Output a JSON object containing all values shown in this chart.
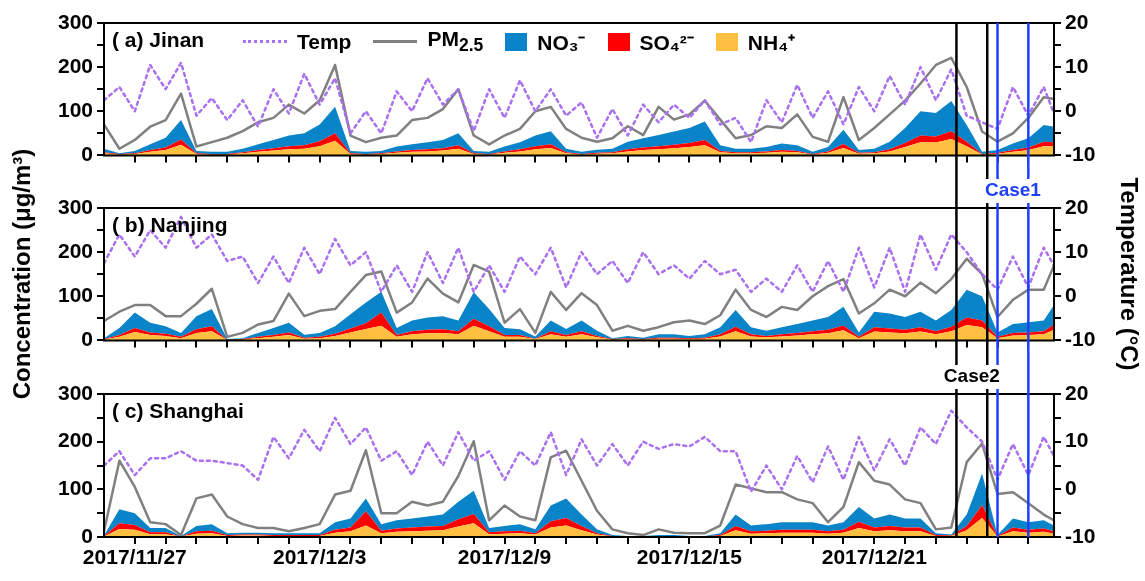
{
  "chart_data": [
    {
      "type": "area",
      "title": "( a) Jinan",
      "stacked": true,
      "legend": "top",
      "tick_labels": "y",
      "xticks": [
        {
          "value": "2017-11-27",
          "label": null
        },
        {
          "value": "2017-11-28",
          "label": null
        },
        {
          "value": "2017-11-29",
          "label": null
        },
        {
          "value": "2017-11-30",
          "label": null
        },
        {
          "value": "2017-12-01",
          "label": null
        },
        {
          "value": "2017-12-02",
          "label": null
        },
        {
          "value": "2017-12-03",
          "label": null
        },
        {
          "value": "2017-12-04",
          "label": null
        },
        {
          "value": "2017-12-05",
          "label": null
        },
        {
          "value": "2017-12-06",
          "label": null
        },
        {
          "value": "2017-12-07",
          "label": null
        },
        {
          "value": "2017-12-08",
          "label": null
        },
        {
          "value": "2017-12-09",
          "label": null
        },
        {
          "value": "2017-12-10",
          "label": null
        },
        {
          "value": "2017-12-11",
          "label": null
        },
        {
          "value": "2017-12-12",
          "label": null
        },
        {
          "value": "2017-12-13",
          "label": null
        },
        {
          "value": "2017-12-14",
          "label": null
        },
        {
          "value": "2017-12-15",
          "label": null
        },
        {
          "value": "2017-12-16",
          "label": null
        },
        {
          "value": "2017-12-17",
          "label": null
        },
        {
          "value": "2017-12-18",
          "label": null
        },
        {
          "value": "2017-12-19",
          "label": null
        },
        {
          "value": "2017-12-20",
          "label": null
        },
        {
          "value": "2017-12-21",
          "label": null
        },
        {
          "value": "2017-12-22",
          "label": null
        },
        {
          "value": "2017-12-23",
          "label": null
        },
        {
          "value": "2017-12-24",
          "label": null
        },
        {
          "value": "2017-12-25",
          "label": null
        },
        {
          "value": "2017-12-26",
          "label": null
        }
      ],
      "x": [
        "2017-11-26T00:00",
        "2017-11-26T12:00",
        "2017-11-27T00:00",
        "2017-11-27T12:00",
        "2017-11-28T00:00",
        "2017-11-28T12:00",
        "2017-11-29T00:00",
        "2017-11-29T12:00",
        "2017-11-30T00:00",
        "2017-11-30T12:00",
        "2017-12-01T00:00",
        "2017-12-01T12:00",
        "2017-12-02T00:00",
        "2017-12-02T12:00",
        "2017-12-03T00:00",
        "2017-12-03T12:00",
        "2017-12-04T00:00",
        "2017-12-04T12:00",
        "2017-12-05T00:00",
        "2017-12-05T12:00",
        "2017-12-06T00:00",
        "2017-12-06T12:00",
        "2017-12-07T00:00",
        "2017-12-07T12:00",
        "2017-12-08T00:00",
        "2017-12-08T12:00",
        "2017-12-09T00:00",
        "2017-12-09T12:00",
        "2017-12-10T00:00",
        "2017-12-10T12:00",
        "2017-12-11T00:00",
        "2017-12-11T12:00",
        "2017-12-12T00:00",
        "2017-12-12T12:00",
        "2017-12-13T00:00",
        "2017-12-13T12:00",
        "2017-12-14T00:00",
        "2017-12-14T12:00",
        "2017-12-15T00:00",
        "2017-12-15T12:00",
        "2017-12-16T00:00",
        "2017-12-16T12:00",
        "2017-12-17T00:00",
        "2017-12-17T12:00",
        "2017-12-18T00:00",
        "2017-12-18T12:00",
        "2017-12-19T00:00",
        "2017-12-19T12:00",
        "2017-12-20T00:00",
        "2017-12-20T12:00",
        "2017-12-21T00:00",
        "2017-12-21T12:00",
        "2017-12-22T00:00",
        "2017-12-22T12:00",
        "2017-12-23T00:00",
        "2017-12-23T12:00",
        "2017-12-24T00:00",
        "2017-12-24T12:00",
        "2017-12-25T00:00",
        "2017-12-25T12:00",
        "2017-12-26T00:00",
        "2017-12-26T12:00",
        "2017-12-26T20:00"
      ],
      "xlim": [
        "2017-11-26T00:00",
        "2017-12-26T20:00"
      ],
      "ylim": [
        0,
        300
      ],
      "yticks": [
        0,
        {
          "value": 50,
          "label": null
        },
        100,
        {
          "value": 150,
          "label": null
        },
        200,
        {
          "value": 250,
          "label": null
        },
        300
      ],
      "y2lim": [
        -10,
        20
      ],
      "y2ticks": [
        -10,
        {
          "value": -5,
          "label": null
        },
        0,
        {
          "value": 5,
          "label": null
        },
        10,
        {
          "value": 15,
          "label": null
        },
        20
      ],
      "ref_lines": [
        {
          "axis": "x",
          "value": "2017-12-23T16:00",
          "color": "#000000"
        },
        {
          "axis": "x",
          "value": "2017-12-24T16:00",
          "color": "#000000"
        },
        {
          "axis": "x",
          "value": "2017-12-25T00:00",
          "color": "#1f3fff"
        },
        {
          "axis": "x",
          "value": "2017-12-26T00:00",
          "color": "#1f3fff"
        }
      ],
      "series": [
        {
          "name": "Temp",
          "type": "line",
          "axis": "y2",
          "line_style": "dotted",
          "color": "#a970f0",
          "values": [
            2.5,
            5.5,
            0,
            10.5,
            5,
            11,
            -1,
            3,
            -2,
            2.5,
            -3.5,
            5,
            -0.5,
            8.5,
            1.5,
            7.5,
            -5,
            0,
            -5,
            4.5,
            0,
            7.5,
            1.5,
            5,
            -4.5,
            5,
            -1.5,
            7,
            0,
            5,
            -1,
            2,
            -6,
            0.5,
            -5.5,
            1.5,
            -2.5,
            1.5,
            -1.5,
            2.5,
            -3,
            -1.5,
            -7,
            2.5,
            -2.5,
            6,
            -1.5,
            4.5,
            -3,
            5.5,
            0,
            8,
            1.5,
            10,
            2.5,
            9.5,
            -1,
            -2.5,
            -4,
            5.5,
            -1,
            5.5,
            -0.5
          ]
        },
        {
          "name": "PM$_{2.5}$",
          "type": "line",
          "color": "#808080",
          "values": [
            70,
            15,
            35,
            65,
            80,
            140,
            20,
            30,
            40,
            55,
            75,
            85,
            115,
            95,
            125,
            205,
            45,
            30,
            40,
            45,
            80,
            85,
            105,
            150,
            45,
            25,
            45,
            60,
            100,
            110,
            60,
            40,
            31,
            39,
            66,
            46,
            110,
            81,
            93,
            124,
            81,
            39,
            46,
            66,
            62,
            93,
            42,
            31,
            132,
            35,
            62,
            93,
            124,
            163,
            205,
            221,
            155,
            54,
            31,
            50,
            85,
            132,
            128
          ]
        },
        {
          "name": "NH₄⁺",
          "color": "#ffbf40",
          "values": [
            5,
            2,
            3,
            8,
            12,
            24,
            3,
            2,
            2,
            5,
            8,
            11,
            14,
            15,
            21,
            33,
            3,
            2,
            3,
            6,
            8,
            9,
            11,
            15,
            3,
            2,
            6,
            9,
            14,
            17,
            5,
            2,
            4,
            5,
            9,
            12,
            14,
            16,
            19,
            23,
            7,
            5,
            5,
            6,
            8,
            7,
            2,
            6,
            17,
            4,
            5,
            9,
            19,
            30,
            29,
            37,
            21,
            2,
            4,
            8,
            12,
            21,
            20
          ]
        },
        {
          "name": "SO₄²⁻",
          "color": "#ff0000",
          "values": [
            2,
            1,
            2,
            4,
            6,
            12,
            2,
            1,
            1,
            2,
            4,
            5,
            7,
            8,
            11,
            17,
            2,
            1,
            2,
            3,
            4,
            5,
            5,
            8,
            2,
            1,
            3,
            5,
            7,
            8,
            2,
            1,
            2,
            2,
            5,
            6,
            7,
            8,
            9,
            12,
            3,
            2,
            2,
            3,
            4,
            3,
            1,
            3,
            9,
            2,
            2,
            5,
            9,
            15,
            14,
            18,
            10,
            1,
            2,
            4,
            6,
            10,
            10
          ]
        },
        {
          "name": "NO₃⁻",
          "color": "#0a84c8",
          "values": [
            8,
            2,
            5,
            13,
            22,
            44,
            5,
            5,
            5,
            8,
            13,
            19,
            24,
            27,
            38,
            60,
            5,
            5,
            5,
            11,
            13,
            16,
            19,
            27,
            5,
            5,
            11,
            16,
            24,
            30,
            8,
            5,
            7,
            8,
            17,
            21,
            25,
            30,
            34,
            42,
            13,
            8,
            8,
            10,
            15,
            13,
            5,
            10,
            32,
            6,
            8,
            17,
            34,
            55,
            53,
            68,
            38,
            5,
            6,
            15,
            21,
            38,
            35
          ]
        }
      ]
    },
    {
      "type": "area",
      "title": "( b) Nanjing",
      "stacked": true,
      "tick_labels": "y",
      "ylabel": "Concentration (μg/m³)",
      "y2label": "Temperature (°C)",
      "x": [
        "2017-11-26T00:00",
        "2017-11-26T12:00",
        "2017-11-27T00:00",
        "2017-11-27T12:00",
        "2017-11-28T00:00",
        "2017-11-28T12:00",
        "2017-11-29T00:00",
        "2017-11-29T12:00",
        "2017-11-30T00:00",
        "2017-11-30T12:00",
        "2017-12-01T00:00",
        "2017-12-01T12:00",
        "2017-12-02T00:00",
        "2017-12-02T12:00",
        "2017-12-03T00:00",
        "2017-12-03T12:00",
        "2017-12-04T00:00",
        "2017-12-04T12:00",
        "2017-12-05T00:00",
        "2017-12-05T12:00",
        "2017-12-06T00:00",
        "2017-12-06T12:00",
        "2017-12-07T00:00",
        "2017-12-07T12:00",
        "2017-12-08T00:00",
        "2017-12-08T12:00",
        "2017-12-09T00:00",
        "2017-12-09T12:00",
        "2017-12-10T00:00",
        "2017-12-10T12:00",
        "2017-12-11T00:00",
        "2017-12-11T12:00",
        "2017-12-12T00:00",
        "2017-12-12T12:00",
        "2017-12-13T00:00",
        "2017-12-13T12:00",
        "2017-12-14T00:00",
        "2017-12-14T12:00",
        "2017-12-15T00:00",
        "2017-12-15T12:00",
        "2017-12-16T00:00",
        "2017-12-16T12:00",
        "2017-12-17T00:00",
        "2017-12-17T12:00",
        "2017-12-18T00:00",
        "2017-12-18T12:00",
        "2017-12-19T00:00",
        "2017-12-19T12:00",
        "2017-12-20T00:00",
        "2017-12-20T12:00",
        "2017-12-21T00:00",
        "2017-12-21T12:00",
        "2017-12-22T00:00",
        "2017-12-22T12:00",
        "2017-12-23T00:00",
        "2017-12-23T12:00",
        "2017-12-24T00:00",
        "2017-12-24T12:00",
        "2017-12-25T00:00",
        "2017-12-25T12:00",
        "2017-12-26T00:00",
        "2017-12-26T12:00",
        "2017-12-26T20:00"
      ],
      "xlim": [
        "2017-11-26T00:00",
        "2017-12-26T20:00"
      ],
      "xticks": [
        {
          "value": "2017-11-27",
          "label": null
        },
        {
          "value": "2017-11-28",
          "label": null
        },
        {
          "value": "2017-11-29",
          "label": null
        },
        {
          "value": "2017-11-30",
          "label": null
        },
        {
          "value": "2017-12-01",
          "label": null
        },
        {
          "value": "2017-12-02",
          "label": null
        },
        {
          "value": "2017-12-03",
          "label": null
        },
        {
          "value": "2017-12-04",
          "label": null
        },
        {
          "value": "2017-12-05",
          "label": null
        },
        {
          "value": "2017-12-06",
          "label": null
        },
        {
          "value": "2017-12-07",
          "label": null
        },
        {
          "value": "2017-12-08",
          "label": null
        },
        {
          "value": "2017-12-09",
          "label": null
        },
        {
          "value": "2017-12-10",
          "label": null
        },
        {
          "value": "2017-12-11",
          "label": null
        },
        {
          "value": "2017-12-12",
          "label": null
        },
        {
          "value": "2017-12-13",
          "label": null
        },
        {
          "value": "2017-12-14",
          "label": null
        },
        {
          "value": "2017-12-15",
          "label": null
        },
        {
          "value": "2017-12-16",
          "label": null
        },
        {
          "value": "2017-12-17",
          "label": null
        },
        {
          "value": "2017-12-18",
          "label": null
        },
        {
          "value": "2017-12-19",
          "label": null
        },
        {
          "value": "2017-12-20",
          "label": null
        },
        {
          "value": "2017-12-21",
          "label": null
        },
        {
          "value": "2017-12-22",
          "label": null
        },
        {
          "value": "2017-12-23",
          "label": null
        },
        {
          "value": "2017-12-24",
          "label": null
        },
        {
          "value": "2017-12-25",
          "label": null
        },
        {
          "value": "2017-12-26",
          "label": null
        }
      ],
      "ylim": [
        0,
        300
      ],
      "yticks": [
        0,
        {
          "value": 50,
          "label": null
        },
        100,
        {
          "value": 150,
          "label": null
        },
        200,
        {
          "value": 250,
          "label": null
        },
        300
      ],
      "y2lim": [
        -10,
        20
      ],
      "y2ticks": [
        -10,
        {
          "value": -5,
          "label": null
        },
        0,
        {
          "value": 5,
          "label": null
        },
        10,
        {
          "value": 15,
          "label": null
        },
        20
      ],
      "ref_lines": [
        {
          "axis": "x",
          "value": "2017-12-23T16:00",
          "color": "#000000"
        },
        {
          "axis": "x",
          "value": "2017-12-24T16:00",
          "color": "#000000"
        },
        {
          "axis": "x",
          "value": "2017-12-25T00:00",
          "label": "Case1",
          "color": "#1f3fff"
        },
        {
          "axis": "x",
          "value": "2017-12-26T00:00",
          "color": "#1f3fff"
        }
      ],
      "series": [
        {
          "type": "line",
          "axis": "y2",
          "line_style": "dotted",
          "color": "#a970f0",
          "values": [
            7.5,
            14,
            9,
            15,
            11,
            18,
            11,
            14,
            8,
            9,
            3,
            9,
            3,
            11,
            5,
            13,
            7,
            10,
            1,
            7,
            1,
            10,
            3,
            11,
            1,
            7,
            1,
            9,
            5,
            11,
            2,
            10,
            5,
            8,
            3,
            10,
            5,
            7,
            4,
            8,
            5,
            6,
            1,
            4,
            1,
            7,
            1,
            8,
            1,
            11,
            2,
            11,
            1,
            14,
            6,
            14,
            10,
            5,
            1.5,
            9,
            2,
            11,
            7
          ]
        },
        {
          "type": "line",
          "color": "#808080",
          "values": [
            44,
            65,
            80,
            80,
            55,
            55,
            83,
            117,
            8,
            17,
            36,
            44,
            106,
            55,
            67,
            71,
            110,
            148,
            156,
            63,
            86,
            140,
            106,
            86,
            171,
            156,
            40,
            71,
            17,
            110,
            69,
            107,
            80,
            22,
            33,
            22,
            30,
            41,
            45,
            37,
            57,
            115,
            69,
            53,
            76,
            69,
            100,
            123,
            139,
            61,
            84,
            115,
            100,
            131,
            107,
            139,
            185,
            150,
            53,
            92,
            115,
            115,
            170
          ]
        },
        {
          "color": "#ffbf40",
          "values": [
            2,
            8,
            19,
            12,
            10,
            5,
            17,
            21,
            1,
            2,
            5,
            8,
            12,
            4,
            5,
            10,
            18,
            26,
            33,
            8,
            14,
            16,
            17,
            14,
            33,
            21,
            8,
            8,
            3,
            14,
            8,
            14,
            7,
            2,
            3,
            2,
            4,
            4,
            3,
            4,
            9,
            21,
            9,
            7,
            9,
            11,
            14,
            16,
            23,
            5,
            20,
            18,
            16,
            20,
            14,
            21,
            35,
            30,
            5,
            11,
            12,
            14,
            24
          ]
        },
        {
          "color": "#ff0000",
          "values": [
            1,
            4,
            9,
            6,
            5,
            3,
            8,
            11,
            0,
            1,
            3,
            4,
            6,
            2,
            3,
            5,
            9,
            13,
            30,
            4,
            7,
            8,
            8,
            7,
            16,
            11,
            4,
            4,
            1,
            7,
            4,
            7,
            3,
            1,
            2,
            1,
            2,
            2,
            2,
            2,
            5,
            10,
            5,
            3,
            5,
            6,
            7,
            8,
            11,
            3,
            10,
            9,
            8,
            10,
            7,
            10,
            17,
            15,
            3,
            6,
            6,
            7,
            12
          ]
        },
        {
          "color": "#0a84c8",
          "values": [
            2,
            16,
            35,
            22,
            17,
            9,
            30,
            39,
            2,
            2,
            9,
            16,
            22,
            7,
            9,
            17,
            32,
            47,
            47,
            16,
            24,
            28,
            30,
            24,
            60,
            39,
            16,
            13,
            5,
            24,
            14,
            24,
            12,
            2,
            5,
            3,
            8,
            8,
            5,
            8,
            16,
            38,
            16,
            12,
            16,
            20,
            24,
            29,
            42,
            10,
            35,
            34,
            29,
            35,
            24,
            38,
            63,
            55,
            10,
            20,
            23,
            24,
            44
          ]
        }
      ]
    },
    {
      "type": "area",
      "title": "( c) Shanghai",
      "stacked": true,
      "x": [
        "2017-11-26T00:00",
        "2017-11-26T12:00",
        "2017-11-27T00:00",
        "2017-11-27T12:00",
        "2017-11-28T00:00",
        "2017-11-28T12:00",
        "2017-11-29T00:00",
        "2017-11-29T12:00",
        "2017-11-30T00:00",
        "2017-11-30T12:00",
        "2017-12-01T00:00",
        "2017-12-01T12:00",
        "2017-12-02T00:00",
        "2017-12-02T12:00",
        "2017-12-03T00:00",
        "2017-12-03T12:00",
        "2017-12-04T00:00",
        "2017-12-04T12:00",
        "2017-12-05T00:00",
        "2017-12-05T12:00",
        "2017-12-06T00:00",
        "2017-12-06T12:00",
        "2017-12-07T00:00",
        "2017-12-07T12:00",
        "2017-12-08T00:00",
        "2017-12-08T12:00",
        "2017-12-09T00:00",
        "2017-12-09T12:00",
        "2017-12-10T00:00",
        "2017-12-10T12:00",
        "2017-12-11T00:00",
        "2017-12-11T12:00",
        "2017-12-12T00:00",
        "2017-12-12T12:00",
        "2017-12-13T00:00",
        "2017-12-13T12:00",
        "2017-12-14T00:00",
        "2017-12-14T12:00",
        "2017-12-15T00:00",
        "2017-12-15T12:00",
        "2017-12-16T00:00",
        "2017-12-16T12:00",
        "2017-12-17T00:00",
        "2017-12-17T12:00",
        "2017-12-18T00:00",
        "2017-12-18T12:00",
        "2017-12-19T00:00",
        "2017-12-19T12:00",
        "2017-12-20T00:00",
        "2017-12-20T12:00",
        "2017-12-21T00:00",
        "2017-12-21T12:00",
        "2017-12-22T00:00",
        "2017-12-22T12:00",
        "2017-12-23T00:00",
        "2017-12-23T12:00",
        "2017-12-24T00:00",
        "2017-12-24T12:00",
        "2017-12-25T00:00",
        "2017-12-25T12:00",
        "2017-12-26T00:00",
        "2017-12-26T12:00",
        "2017-12-26T20:00"
      ],
      "xlim": [
        "2017-11-26T00:00",
        "2017-12-26T20:00"
      ],
      "xticks": [
        {
          "value": "2017-11-27",
          "label": "2017/11/27"
        },
        {
          "value": "2017-11-28",
          "label": null
        },
        {
          "value": "2017-11-29",
          "label": null
        },
        {
          "value": "2017-11-30",
          "label": null
        },
        {
          "value": "2017-12-01",
          "label": null
        },
        {
          "value": "2017-12-02",
          "label": null
        },
        {
          "value": "2017-12-03",
          "label": "2017/12/3"
        },
        {
          "value": "2017-12-04",
          "label": null
        },
        {
          "value": "2017-12-05",
          "label": null
        },
        {
          "value": "2017-12-06",
          "label": null
        },
        {
          "value": "2017-12-07",
          "label": null
        },
        {
          "value": "2017-12-08",
          "label": null
        },
        {
          "value": "2017-12-09",
          "label": "2017/12/9"
        },
        {
          "value": "2017-12-10",
          "label": null
        },
        {
          "value": "2017-12-11",
          "label": null
        },
        {
          "value": "2017-12-12",
          "label": null
        },
        {
          "value": "2017-12-13",
          "label": null
        },
        {
          "value": "2017-12-14",
          "label": null
        },
        {
          "value": "2017-12-15",
          "label": "2017/12/15"
        },
        {
          "value": "2017-12-16",
          "label": null
        },
        {
          "value": "2017-12-17",
          "label": null
        },
        {
          "value": "2017-12-18",
          "label": null
        },
        {
          "value": "2017-12-19",
          "label": null
        },
        {
          "value": "2017-12-20",
          "label": null
        },
        {
          "value": "2017-12-21",
          "label": "2017/12/21"
        },
        {
          "value": "2017-12-22",
          "label": null
        },
        {
          "value": "2017-12-23",
          "label": null
        },
        {
          "value": "2017-12-24",
          "label": null
        },
        {
          "value": "2017-12-25",
          "label": null
        },
        {
          "value": "2017-12-26",
          "label": null
        }
      ],
      "ylim": [
        0,
        300
      ],
      "yticks": [
        0,
        {
          "value": 50,
          "label": null
        },
        100,
        {
          "value": 150,
          "label": null
        },
        200,
        {
          "value": 250,
          "label": null
        },
        300
      ],
      "y2lim": [
        -10,
        20
      ],
      "y2ticks": [
        -10,
        {
          "value": -5,
          "label": null
        },
        0,
        {
          "value": 5,
          "label": null
        },
        10,
        {
          "value": 15,
          "label": null
        },
        20
      ],
      "ref_lines": [
        {
          "axis": "x",
          "value": "2017-12-23T16:00",
          "label": "Case2",
          "color": "#000000"
        },
        {
          "axis": "x",
          "value": "2017-12-24T16:00",
          "color": "#000000"
        },
        {
          "axis": "x",
          "value": "2017-12-25T00:00",
          "color": "#1f3fff"
        },
        {
          "axis": "x",
          "value": "2017-12-26T00:00",
          "color": "#1f3fff"
        }
      ],
      "series": [
        {
          "type": "line",
          "axis": "y2",
          "line_style": "dotted",
          "color": "#a970f0",
          "values": [
            5,
            8,
            3,
            6.5,
            6.5,
            8,
            6,
            6,
            5.5,
            5,
            2,
            11,
            6.5,
            12.5,
            8,
            15,
            9.5,
            13,
            6,
            8,
            3,
            10,
            5,
            12,
            6,
            8,
            2,
            8,
            5,
            12,
            3,
            10.5,
            5,
            9.5,
            5,
            10,
            8.5,
            9.5,
            9,
            11,
            8,
            8,
            -0.5,
            5,
            0,
            7,
            1.5,
            9,
            2,
            11,
            4,
            10.5,
            5,
            13,
            9.5,
            16.5,
            13,
            10,
            2,
            9.5,
            3,
            11,
            7
          ]
        },
        {
          "type": "line",
          "color": "#808080",
          "values": [
            12,
            160,
            105,
            31,
            27,
            4,
            81,
            89,
            43,
            27,
            19,
            19,
            12,
            19,
            27,
            89,
            97,
            182,
            50,
            50,
            74,
            66,
            74,
            128,
            201,
            35,
            66,
            43,
            35,
            167,
            181,
            118,
            55,
            16,
            8,
            4,
            16,
            9,
            8,
            8,
            24,
            110,
            102,
            94,
            94,
            79,
            71,
            31,
            63,
            157,
            118,
            110,
            79,
            71,
            16,
            20,
            157,
            196,
            90,
            94,
            71,
            47,
            35
          ]
        },
        {
          "color": "#ffbf40",
          "values": [
            1,
            17,
            15,
            6,
            6,
            1,
            7,
            8,
            2,
            3,
            3,
            2,
            2,
            2,
            2,
            9,
            12,
            24,
            8,
            11,
            12,
            13,
            14,
            22,
            29,
            6,
            7,
            8,
            5,
            20,
            24,
            14,
            5,
            1,
            1,
            1,
            1,
            1,
            1,
            1,
            2,
            14,
            7,
            8,
            9,
            9,
            9,
            7,
            9,
            19,
            12,
            14,
            12,
            12,
            2,
            2,
            14,
            40,
            1,
            12,
            9,
            11,
            7
          ]
        },
        {
          "color": "#ff0000",
          "values": [
            1,
            12,
            10,
            4,
            4,
            0,
            5,
            5,
            2,
            2,
            2,
            2,
            2,
            2,
            2,
            6,
            8,
            30,
            5,
            7,
            8,
            9,
            9,
            15,
            19,
            4,
            5,
            5,
            3,
            13,
            16,
            9,
            3,
            1,
            0,
            0,
            1,
            1,
            0,
            0,
            2,
            9,
            5,
            5,
            6,
            6,
            6,
            5,
            6,
            13,
            8,
            9,
            8,
            8,
            2,
            1,
            9,
            27,
            1,
            8,
            6,
            7,
            5
          ]
        },
        {
          "color": "#0a84c8",
          "values": [
            1,
            29,
            25,
            9,
            9,
            1,
            11,
            14,
            4,
            4,
            4,
            4,
            4,
            4,
            4,
            16,
            19,
            27,
            14,
            17,
            19,
            21,
            24,
            37,
            49,
            9,
            11,
            14,
            8,
            33,
            41,
            24,
            8,
            2,
            1,
            1,
            2,
            2,
            1,
            1,
            4,
            24,
            12,
            14,
            16,
            16,
            16,
            12,
            16,
            31,
            19,
            24,
            19,
            19,
            4,
            2,
            24,
            66,
            2,
            19,
            16,
            17,
            12
          ]
        }
      ]
    }
  ]
}
